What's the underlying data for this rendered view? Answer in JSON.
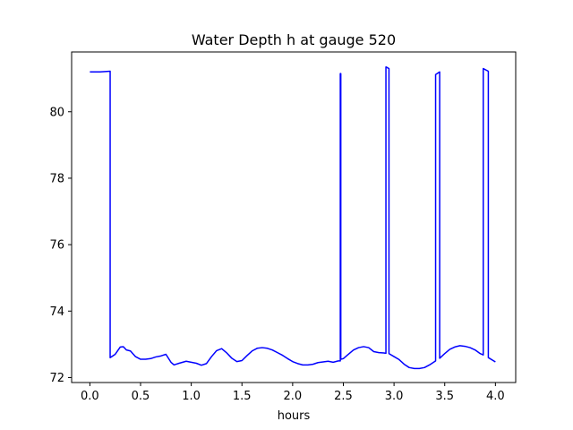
{
  "chart_data": {
    "type": "line",
    "title": "Water Depth h at gauge 520",
    "xlabel": "hours",
    "ylabel": "",
    "xlim": [
      -0.18,
      4.2
    ],
    "ylim": [
      71.85,
      81.8
    ],
    "xticks": [
      0.0,
      0.5,
      1.0,
      1.5,
      2.0,
      2.5,
      3.0,
      3.5,
      4.0
    ],
    "xtick_labels": [
      "0.0",
      "0.5",
      "1.0",
      "1.5",
      "2.0",
      "2.5",
      "3.0",
      "3.5",
      "4.0"
    ],
    "yticks": [
      72,
      74,
      76,
      78,
      80
    ],
    "ytick_labels": [
      "72",
      "74",
      "76",
      "78",
      "80"
    ],
    "grid": false,
    "legend": "none",
    "series": [
      {
        "color": "#0000ff",
        "x": [
          0.0,
          0.1,
          0.2,
          0.2,
          0.25,
          0.3,
          0.33,
          0.36,
          0.4,
          0.45,
          0.5,
          0.55,
          0.6,
          0.65,
          0.7,
          0.75,
          0.8,
          0.83,
          0.88,
          0.95,
          1.0,
          1.05,
          1.1,
          1.15,
          1.2,
          1.25,
          1.3,
          1.35,
          1.4,
          1.45,
          1.5,
          1.55,
          1.6,
          1.65,
          1.7,
          1.75,
          1.8,
          1.85,
          1.9,
          1.95,
          2.0,
          2.05,
          2.1,
          2.15,
          2.2,
          2.25,
          2.3,
          2.35,
          2.4,
          2.45,
          2.47,
          2.47,
          2.475,
          2.475,
          2.5,
          2.55,
          2.6,
          2.65,
          2.7,
          2.75,
          2.8,
          2.85,
          2.9,
          2.92,
          2.92,
          2.95,
          2.95,
          3.0,
          3.05,
          3.1,
          3.15,
          3.2,
          3.25,
          3.3,
          3.35,
          3.4,
          3.41,
          3.41,
          3.45,
          3.45,
          3.5,
          3.55,
          3.6,
          3.65,
          3.7,
          3.75,
          3.8,
          3.85,
          3.88,
          3.88,
          3.93,
          3.93,
          4.0
        ],
        "y": [
          81.2,
          81.2,
          81.22,
          72.6,
          72.7,
          72.92,
          72.93,
          72.83,
          72.8,
          72.63,
          72.55,
          72.55,
          72.57,
          72.62,
          72.65,
          72.7,
          72.46,
          72.38,
          72.43,
          72.49,
          72.46,
          72.43,
          72.37,
          72.42,
          72.63,
          72.81,
          72.87,
          72.74,
          72.58,
          72.48,
          72.51,
          72.66,
          72.8,
          72.88,
          72.9,
          72.88,
          72.83,
          72.75,
          72.67,
          72.57,
          72.48,
          72.42,
          72.38,
          72.38,
          72.4,
          72.45,
          72.47,
          72.49,
          72.46,
          72.5,
          72.5,
          81.15,
          81.15,
          72.55,
          72.57,
          72.7,
          72.83,
          72.9,
          72.93,
          72.9,
          72.78,
          72.75,
          72.74,
          72.73,
          81.35,
          81.3,
          72.72,
          72.63,
          72.54,
          72.4,
          72.3,
          72.27,
          72.27,
          72.3,
          72.38,
          72.48,
          72.5,
          81.12,
          81.2,
          72.58,
          72.72,
          72.85,
          72.92,
          72.96,
          72.94,
          72.9,
          72.83,
          72.72,
          72.68,
          81.3,
          81.22,
          72.6,
          72.47
        ]
      }
    ]
  }
}
